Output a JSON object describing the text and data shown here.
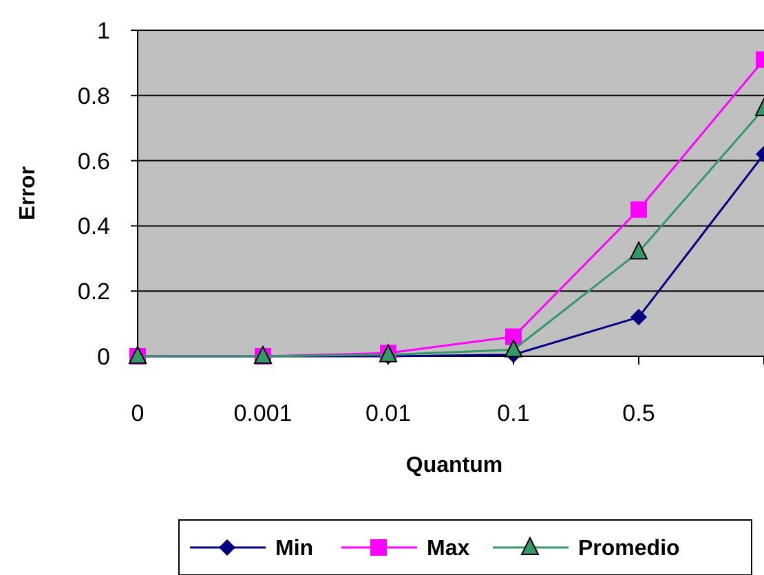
{
  "chart_data": {
    "type": "line",
    "xlabel": "Quantum",
    "ylabel": "Error",
    "categories": [
      "0",
      "0.001",
      "0.01",
      "0.1",
      "0.5",
      null
    ],
    "series": [
      {
        "name": "Min",
        "color": "#000080",
        "marker": "diamond",
        "values": [
          0,
          0,
          0,
          0.005,
          0.12,
          0.62
        ]
      },
      {
        "name": "Max",
        "color": "#ff00ff",
        "marker": "square",
        "values": [
          0,
          0,
          0.01,
          0.06,
          0.45,
          0.91
        ]
      },
      {
        "name": "Promedio",
        "color": "#339966",
        "marker": "triangle",
        "values": [
          0,
          0,
          0.005,
          0.02,
          0.32,
          0.76
        ]
      }
    ],
    "ylim": [
      0,
      1
    ],
    "yticks": [
      0,
      0.2,
      0.4,
      0.6,
      0.8,
      1
    ],
    "grid": "y",
    "legend": "bottom"
  }
}
